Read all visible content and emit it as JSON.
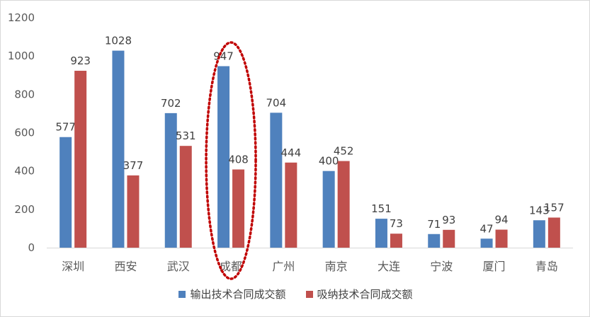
{
  "chart_data": {
    "type": "bar",
    "categories": [
      "深圳",
      "西安",
      "武汉",
      "成都",
      "广州",
      "南京",
      "大连",
      "宁波",
      "厦门",
      "青岛"
    ],
    "series": [
      {
        "name": "输出技术合同成交额",
        "color": "#4f81bd",
        "values": [
          577,
          1028,
          702,
          947,
          704,
          400,
          151,
          71,
          47,
          143
        ]
      },
      {
        "name": "吸纳技术合同成交额",
        "color": "#c0504d",
        "values": [
          923,
          377,
          531,
          408,
          444,
          452,
          73,
          93,
          94,
          157
        ]
      }
    ],
    "ylim": [
      0,
      1200
    ],
    "yticks": [
      0,
      200,
      400,
      600,
      800,
      1000,
      1200
    ],
    "grid": false,
    "legend": "bottom",
    "annotation": {
      "type": "dotted-ellipse",
      "target": "成都",
      "color": "#c00000"
    }
  }
}
